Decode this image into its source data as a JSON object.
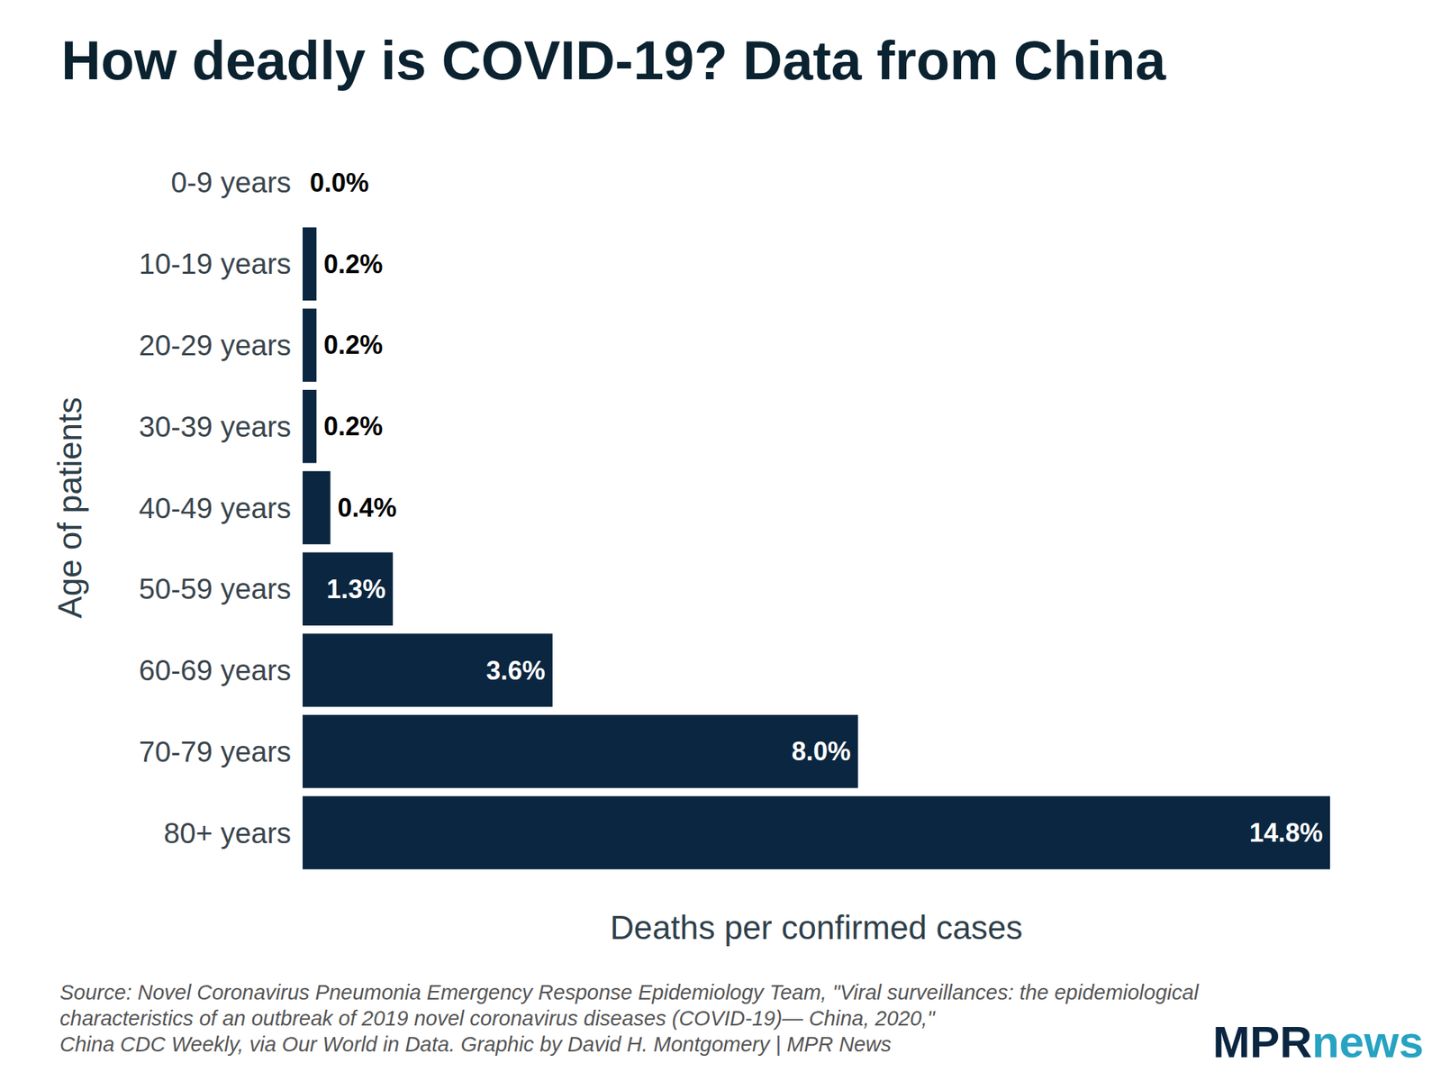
{
  "chart_data": {
    "type": "bar",
    "title": "How deadly is COVID-19? Data from China",
    "x_label": "Deaths per confirmed cases",
    "y_label": "Age of patients",
    "categories": [
      "0-9 years",
      "10-19 years",
      "20-29 years",
      "30-39 years",
      "40-49 years",
      "50-59 years",
      "60-69 years",
      "70-79 years",
      "80+ years"
    ],
    "values": [
      0.0,
      0.2,
      0.2,
      0.2,
      0.4,
      1.3,
      3.6,
      8.0,
      14.8
    ],
    "value_labels": [
      "0.0%",
      "0.2%",
      "0.2%",
      "0.2%",
      "0.4%",
      "1.3%",
      "3.6%",
      "8.0%",
      "14.8%"
    ],
    "color": "#0b2640",
    "xlim": [
      0,
      14.8
    ],
    "orientation": "horizontal",
    "data_labels": true,
    "tick_labels": "y",
    "grid": false,
    "source": [
      "Source: Novel Coronavirus Pneumonia Emergency Response Epidemiology Team, \"Viral surveillances: the epidemiological",
      "characteristics of an outbreak of 2019 novel coronavirus diseases (COVID-19)— China, 2020,\"",
      "China CDC Weekly, via Our World in Data. Graphic by David H. Montgomery | MPR News"
    ],
    "logo": [
      "MPR",
      "news"
    ]
  }
}
